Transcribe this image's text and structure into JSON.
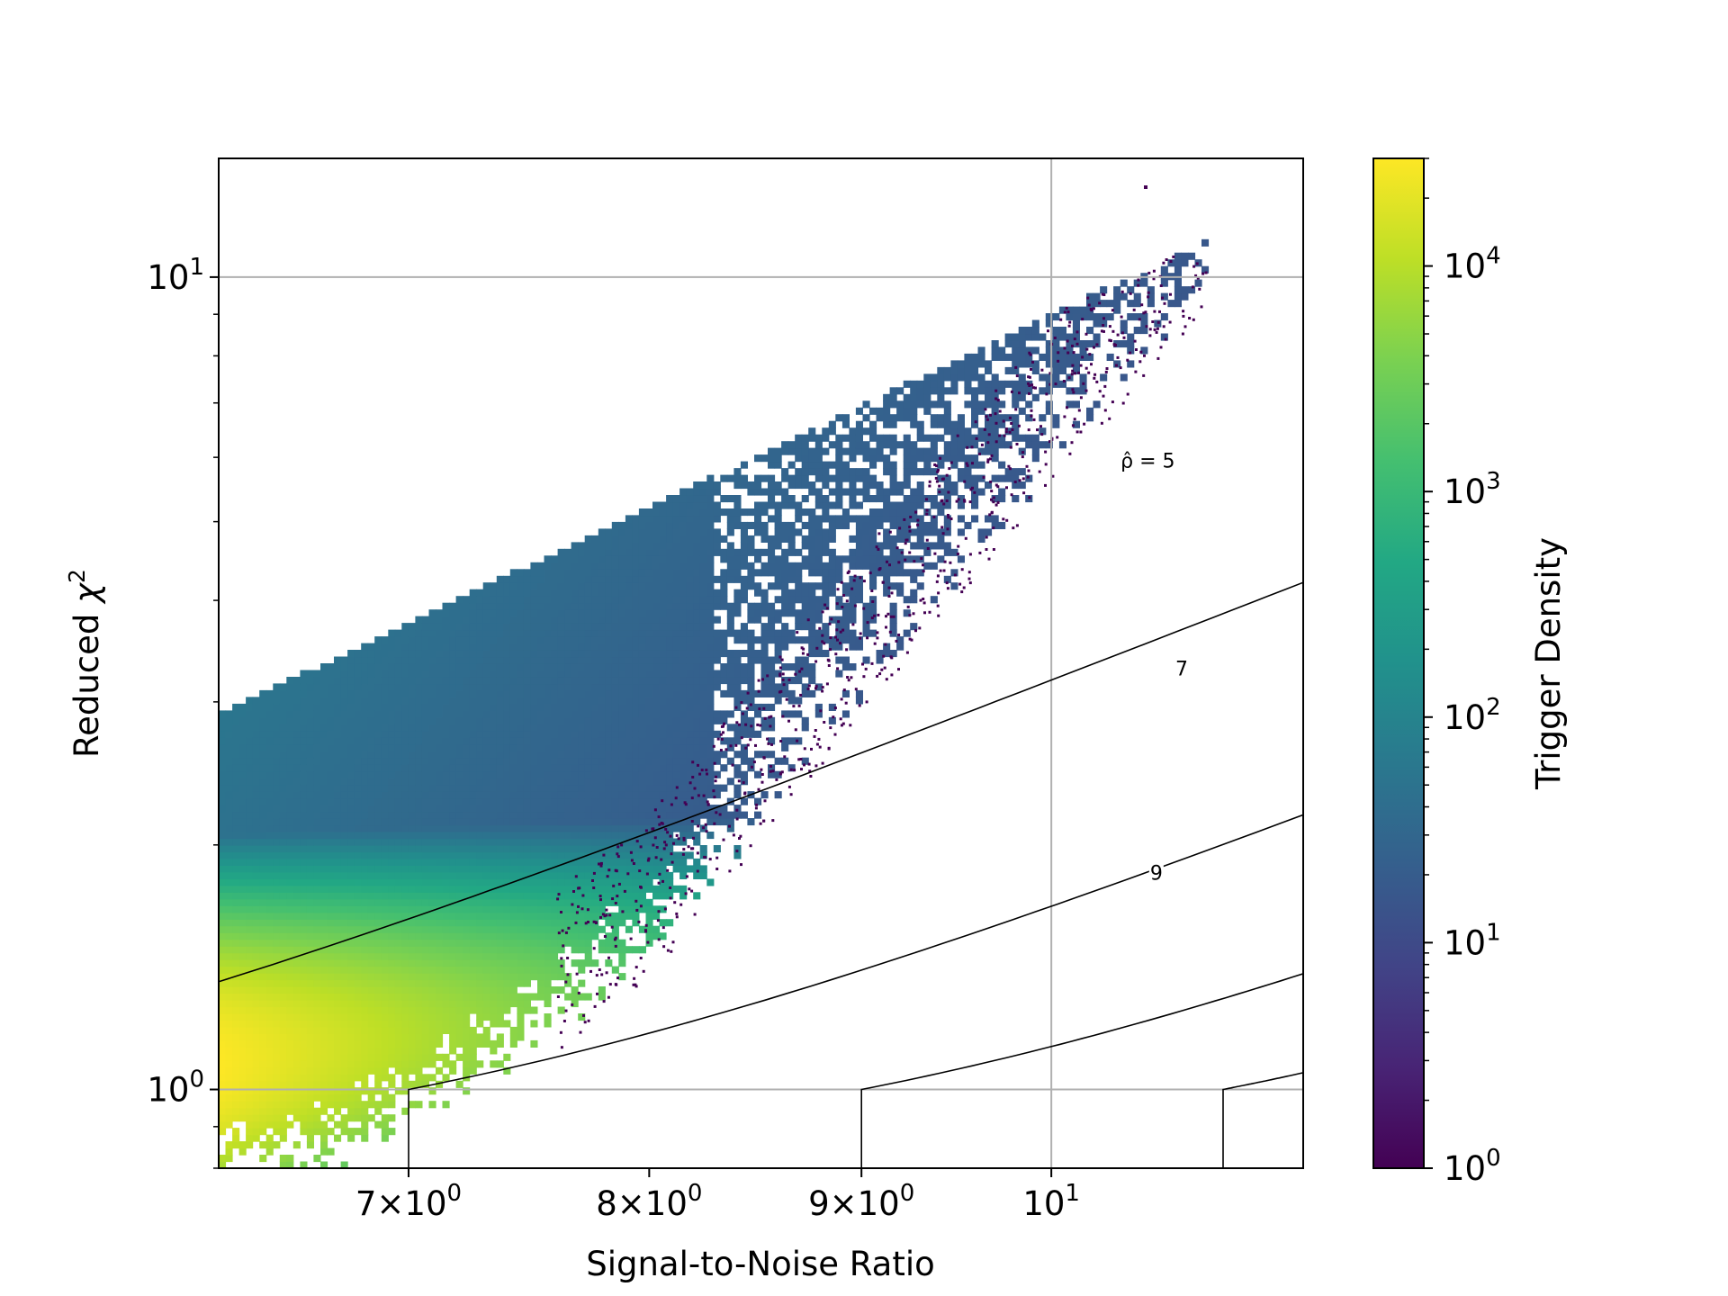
{
  "chart_data": {
    "type": "heatmap",
    "title": "",
    "xlabel": "Signal-to-Noise Ratio",
    "ylabel_main": "Reduced ",
    "ylabel_chi": "χ",
    "ylabel_sup": "2",
    "x_scale": "log",
    "y_scale": "log",
    "xlim": [
      6.3,
      11.5
    ],
    "ylim": [
      0.8,
      14
    ],
    "grid": true,
    "x_ticks": [
      {
        "value": 7,
        "mantissa": "7",
        "exponent": "0"
      },
      {
        "value": 8,
        "mantissa": "8",
        "exponent": "0"
      },
      {
        "value": 9,
        "mantissa": "9",
        "exponent": "0"
      },
      {
        "value": 10,
        "base": "10",
        "exponent": "1"
      }
    ],
    "y_ticks": [
      {
        "value": 1,
        "base": "10",
        "exponent": "0"
      },
      {
        "value": 10,
        "base": "10",
        "exponent": "1"
      }
    ],
    "colorbar": {
      "label": "Trigger Density",
      "scale": "log",
      "range": [
        1,
        30000
      ],
      "colormap": "viridis",
      "ticks": [
        {
          "value": 1,
          "base": "10",
          "exponent": "0"
        },
        {
          "value": 10,
          "base": "10",
          "exponent": "1"
        },
        {
          "value": 100,
          "base": "10",
          "exponent": "2"
        },
        {
          "value": 1000,
          "base": "10",
          "exponent": "3"
        },
        {
          "value": 10000,
          "base": "10",
          "exponent": "4"
        }
      ]
    },
    "contours": [
      {
        "level": 5,
        "label": "ρ̂ = 5",
        "label_at": [
          10.55,
          5.95
        ]
      },
      {
        "level": 7,
        "label": "7",
        "label_at": [
          10.75,
          3.3
        ]
      },
      {
        "level": 9,
        "label": "9",
        "label_at": [
          10.6,
          1.85
        ]
      },
      {
        "level": 11,
        "label": ""
      },
      {
        "level": 13,
        "label": ""
      }
    ],
    "density": {
      "peak_snr": 6.3,
      "peak_chi2": 1.08,
      "peak_density": 30000,
      "max_snr": 10.9
    }
  }
}
